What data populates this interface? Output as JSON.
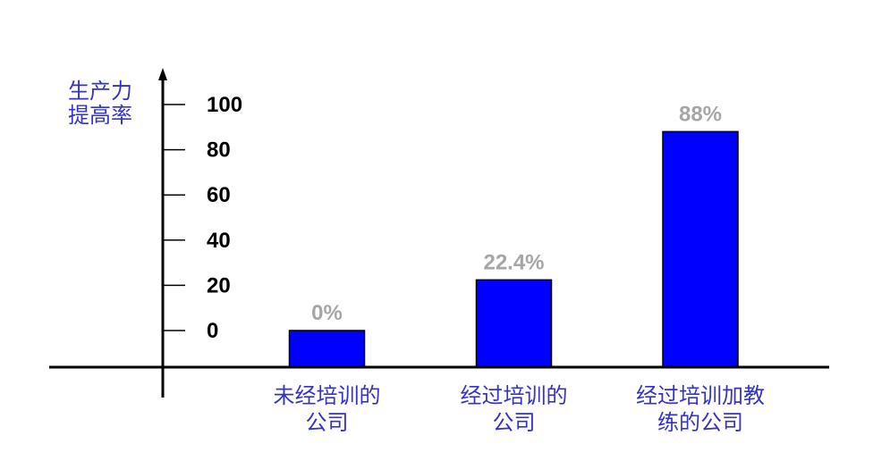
{
  "chart_data": {
    "type": "bar",
    "categories": [
      [
        "未经培训的",
        "公司"
      ],
      [
        "经过培训的",
        "公司"
      ],
      [
        "经过培训加教",
        "练的公司"
      ]
    ],
    "values": [
      0,
      22.4,
      88
    ],
    "data_labels": [
      "0%",
      "22.4%",
      "88%"
    ],
    "ylabel_lines": [
      "生产力",
      "提高率"
    ],
    "yticks": [
      0,
      20,
      40,
      60,
      80,
      100
    ],
    "ytick_labels": [
      "0",
      "20",
      "40",
      "60",
      "80",
      "100"
    ],
    "ylim": [
      0,
      100
    ],
    "grid": false,
    "legend": false,
    "colors": {
      "bar": "#0000ff",
      "category_text": "#3333cc",
      "data_label": "#a6a6a6",
      "axis": "#000000"
    }
  }
}
